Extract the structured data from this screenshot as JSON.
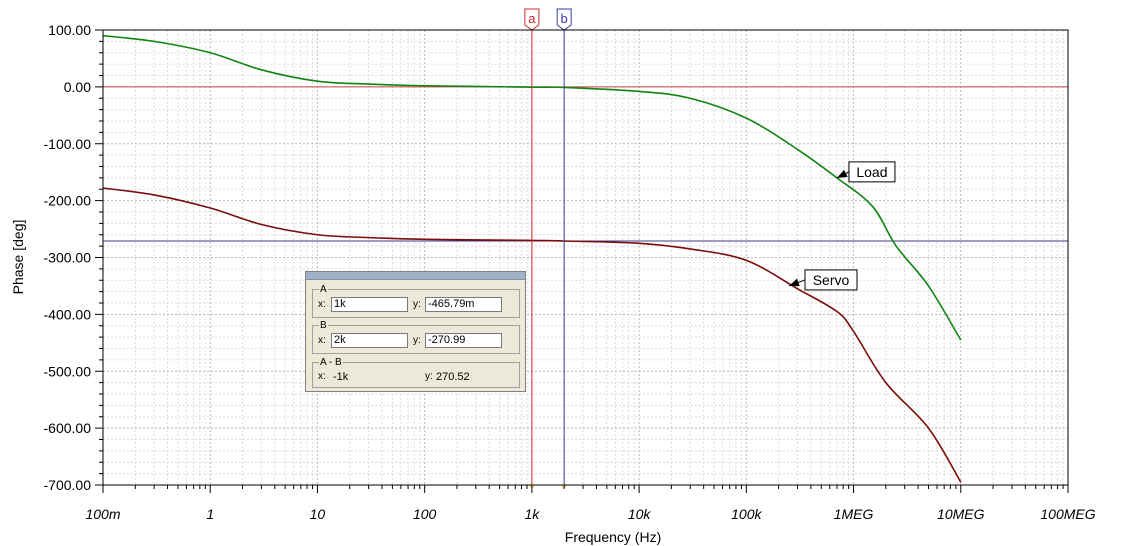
{
  "chart_data": {
    "type": "line",
    "xlabel": "Frequency (Hz)",
    "ylabel": "Phase [deg]",
    "xscale": "log",
    "xlim": [
      0.1,
      100000000
    ],
    "ylim": [
      -700,
      100
    ],
    "xtick_labels": [
      "100m",
      "1",
      "10",
      "100",
      "1k",
      "10k",
      "100k",
      "1MEG",
      "10MEG",
      "100MEG"
    ],
    "ytick_labels": [
      "100.00",
      "0.00",
      "-100.00",
      "-200.00",
      "-300.00",
      "-400.00",
      "-500.00",
      "-600.00",
      "-700.00"
    ],
    "grid": true,
    "series": [
      {
        "name": "Load",
        "color": "#128412",
        "x": [
          0.1,
          0.3,
          1,
          3,
          10,
          30,
          100,
          1000,
          2000,
          10000,
          30000,
          100000,
          300000,
          700000,
          1500000,
          2500000,
          5000000,
          10000000
        ],
        "y": [
          90,
          80,
          60,
          30,
          10,
          5,
          2,
          -0.47,
          -1,
          -8,
          -20,
          -55,
          -110,
          -160,
          -210,
          -280,
          -350,
          -445
        ]
      },
      {
        "name": "Servo",
        "color": "#7b0c0c",
        "x": [
          0.1,
          0.3,
          1,
          3,
          10,
          30,
          100,
          1000,
          2000,
          10000,
          30000,
          100000,
          300000,
          700000,
          1000000,
          2000000,
          5000000,
          10000000
        ],
        "y": [
          -178,
          -190,
          -213,
          -242,
          -260,
          -265,
          -268,
          -270,
          -271,
          -275,
          -285,
          -305,
          -355,
          -395,
          -430,
          -520,
          -600,
          -695
        ]
      }
    ],
    "cursors": [
      {
        "label": "a",
        "x": 1000,
        "color": "#cc2a2a"
      },
      {
        "label": "b",
        "x": 2000,
        "color": "#3a3aa8"
      }
    ],
    "h_markers": [
      {
        "y": 0,
        "color": "#cc4444"
      },
      {
        "y": -270.99,
        "color": "#3a3a8a"
      }
    ],
    "annotations": [
      {
        "text": "Load",
        "x": 700000,
        "y": -160
      },
      {
        "text": "Servo",
        "x": 250000,
        "y": -350
      }
    ]
  },
  "cursor_panel": {
    "a": {
      "label": "A",
      "x_label": "x:",
      "x_value": "1k",
      "y_label": "y:",
      "y_value": "-465.79m"
    },
    "b": {
      "label": "B",
      "x_label": "x:",
      "x_value": "2k",
      "y_label": "y:",
      "y_value": "-270.99"
    },
    "diff": {
      "label": "A - B",
      "x_label": "x:",
      "x_value": "-1k",
      "y_label": "y:",
      "y_value": "270.52"
    }
  }
}
